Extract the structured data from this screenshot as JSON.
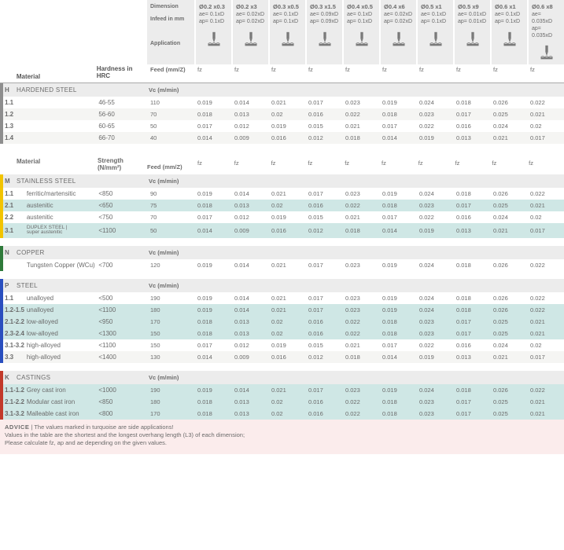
{
  "header": {
    "dimension_label": "Dimension",
    "infeed_label": "Infeed in mm",
    "application_label": "Application",
    "feed_label": "Feed (mm/Z)",
    "vc_label": "Vc (m/min)",
    "material_label": "Material",
    "hardness_label": "Hardness in HRC",
    "strength_label": "Strength (N/mm²)",
    "columns": [
      {
        "dim": "Ø0.2 x0.3",
        "ae": "ae= 0.1xD",
        "ap": "ap= 0.1xD"
      },
      {
        "dim": "Ø0.2 x3",
        "ae": "ae= 0.02xD",
        "ap": "ap= 0.02xD"
      },
      {
        "dim": "Ø0.3 x0.5",
        "ae": "ae= 0.1xD",
        "ap": "ap= 0.1xD"
      },
      {
        "dim": "Ø0.3 x1.5",
        "ae": "ae= 0.09xD",
        "ap": "ap= 0.09xD"
      },
      {
        "dim": "Ø0.4 x0.5",
        "ae": "ae= 0.1xD",
        "ap": "ap= 0.1xD"
      },
      {
        "dim": "Ø0.4 x6",
        "ae": "ae= 0.02xD",
        "ap": "ap= 0.02xD"
      },
      {
        "dim": "Ø0.5 x1",
        "ae": "ae= 0.1xD",
        "ap": "ap= 0.1xD"
      },
      {
        "dim": "Ø0.5 x9",
        "ae": "ae= 0.01xD",
        "ap": "ap= 0.01xD"
      },
      {
        "dim": "Ø0.6 x1",
        "ae": "ae= 0.1xD",
        "ap": "ap= 0.1xD"
      },
      {
        "dim": "Ø0.6 x8",
        "ae": "ae= 0.035xD",
        "ap": "ap= 0.035xD"
      }
    ],
    "fz_label": "fz"
  },
  "sections": [
    {
      "key": "H",
      "name": "HARDENED STEEL",
      "spec_header": "Hardness in HRC",
      "spec_header_key": "hardness_label",
      "rows": [
        {
          "code": "1.1",
          "mat": "",
          "spec": "46-55",
          "vc": "110",
          "fz": [
            "0.019",
            "0.014",
            "0.021",
            "0.017",
            "0.023",
            "0.019",
            "0.024",
            "0.018",
            "0.026",
            "0.022"
          ],
          "alt": false
        },
        {
          "code": "1.2",
          "mat": "",
          "spec": "56-60",
          "vc": "70",
          "fz": [
            "0.018",
            "0.013",
            "0.02",
            "0.016",
            "0.022",
            "0.018",
            "0.023",
            "0.017",
            "0.025",
            "0.021"
          ],
          "alt": true
        },
        {
          "code": "1.3",
          "mat": "",
          "spec": "60-65",
          "vc": "50",
          "fz": [
            "0.017",
            "0.012",
            "0.019",
            "0.015",
            "0.021",
            "0.017",
            "0.022",
            "0.016",
            "0.024",
            "0.02"
          ],
          "alt": false
        },
        {
          "code": "1.4",
          "mat": "",
          "spec": "66-70",
          "vc": "40",
          "fz": [
            "0.014",
            "0.009",
            "0.016",
            "0.012",
            "0.018",
            "0.014",
            "0.019",
            "0.013",
            "0.021",
            "0.017"
          ],
          "alt": true
        }
      ]
    },
    {
      "key": "M",
      "name": "STAINLESS STEEL",
      "spec_header": "Strength (N/mm²)",
      "spec_header_key": "strength_label",
      "show_mat_header": true,
      "rows": [
        {
          "code": "1.1",
          "mat": "ferritic/martensitic",
          "spec": "<850",
          "vc": "90",
          "fz": [
            "0.019",
            "0.014",
            "0.021",
            "0.017",
            "0.023",
            "0.019",
            "0.024",
            "0.018",
            "0.026",
            "0.022"
          ],
          "alt": false
        },
        {
          "code": "2.1",
          "mat": "austenitic",
          "spec": "<650",
          "vc": "75",
          "fz": [
            "0.018",
            "0.013",
            "0.02",
            "0.016",
            "0.022",
            "0.018",
            "0.023",
            "0.017",
            "0.025",
            "0.021"
          ],
          "alt": true,
          "turq": true
        },
        {
          "code": "2.2",
          "mat": "austenitic",
          "spec": "<750",
          "vc": "70",
          "fz": [
            "0.017",
            "0.012",
            "0.019",
            "0.015",
            "0.021",
            "0.017",
            "0.022",
            "0.016",
            "0.024",
            "0.02"
          ],
          "alt": false
        },
        {
          "code": "3.1",
          "mat": "DUPLEX STEEL | super austenitic",
          "spec": "<1100",
          "vc": "50",
          "fz": [
            "0.014",
            "0.009",
            "0.016",
            "0.012",
            "0.018",
            "0.014",
            "0.019",
            "0.013",
            "0.021",
            "0.017"
          ],
          "alt": true,
          "turq": true,
          "duplex": true
        }
      ]
    },
    {
      "key": "N",
      "name": "COPPER",
      "spec_header": "",
      "rows": [
        {
          "code": "",
          "mat": "Tungsten Copper (WCu)",
          "spec": "<700",
          "vc": "120",
          "fz": [
            "0.019",
            "0.014",
            "0.021",
            "0.017",
            "0.023",
            "0.019",
            "0.024",
            "0.018",
            "0.026",
            "0.022"
          ],
          "alt": false
        }
      ]
    },
    {
      "key": "P",
      "name": "STEEL",
      "spec_header": "",
      "rows": [
        {
          "code": "1.1",
          "mat": "unalloyed",
          "spec": "<500",
          "vc": "190",
          "fz": [
            "0.019",
            "0.014",
            "0.021",
            "0.017",
            "0.023",
            "0.019",
            "0.024",
            "0.018",
            "0.026",
            "0.022"
          ],
          "alt": false
        },
        {
          "code": "1.2-1.5",
          "mat": "unalloyed",
          "spec": "<1100",
          "vc": "180",
          "fz": [
            "0.019",
            "0.014",
            "0.021",
            "0.017",
            "0.023",
            "0.019",
            "0.024",
            "0.018",
            "0.026",
            "0.022"
          ],
          "alt": true,
          "turq": true
        },
        {
          "code": "2.1-2.2",
          "mat": "low-alloyed",
          "spec": "<950",
          "vc": "170",
          "fz": [
            "0.018",
            "0.013",
            "0.02",
            "0.016",
            "0.022",
            "0.018",
            "0.023",
            "0.017",
            "0.025",
            "0.021"
          ],
          "alt": false,
          "turq": true
        },
        {
          "code": "2.3-2.4",
          "mat": "low-alloyed",
          "spec": "<1300",
          "vc": "150",
          "fz": [
            "0.018",
            "0.013",
            "0.02",
            "0.016",
            "0.022",
            "0.018",
            "0.023",
            "0.017",
            "0.025",
            "0.021"
          ],
          "alt": true,
          "turq": true
        },
        {
          "code": "3.1-3.2",
          "mat": "high-alloyed",
          "spec": "<1100",
          "vc": "150",
          "fz": [
            "0.017",
            "0.012",
            "0.019",
            "0.015",
            "0.021",
            "0.017",
            "0.022",
            "0.016",
            "0.024",
            "0.02"
          ],
          "alt": false
        },
        {
          "code": "3.3",
          "mat": "high-alloyed",
          "spec": "<1400",
          "vc": "130",
          "fz": [
            "0.014",
            "0.009",
            "0.016",
            "0.012",
            "0.018",
            "0.014",
            "0.019",
            "0.013",
            "0.021",
            "0.017"
          ],
          "alt": true
        }
      ]
    },
    {
      "key": "K",
      "name": "CASTINGS",
      "spec_header": "",
      "rows": [
        {
          "code": "1.1-1.2",
          "mat": "Grey cast iron",
          "spec": "<1000",
          "vc": "190",
          "fz": [
            "0.019",
            "0.014",
            "0.021",
            "0.017",
            "0.023",
            "0.019",
            "0.024",
            "0.018",
            "0.026",
            "0.022"
          ],
          "alt": false,
          "turq": true
        },
        {
          "code": "2.1-2.2",
          "mat": "Modular cast iron",
          "spec": "<850",
          "vc": "180",
          "fz": [
            "0.018",
            "0.013",
            "0.02",
            "0.016",
            "0.022",
            "0.018",
            "0.023",
            "0.017",
            "0.025",
            "0.021"
          ],
          "alt": true,
          "turq": true
        },
        {
          "code": "3.1-3.2",
          "mat": "Malleable cast iron",
          "spec": "<800",
          "vc": "170",
          "fz": [
            "0.018",
            "0.013",
            "0.02",
            "0.016",
            "0.022",
            "0.018",
            "0.023",
            "0.017",
            "0.025",
            "0.021"
          ],
          "alt": false,
          "turq": true
        }
      ]
    }
  ],
  "advice": {
    "title": "ADVICE",
    "line1": "The values marked in turquoise are side applications!",
    "line2": "Values in the table are the shortest and the longest overhang length (L3) of each dimension;",
    "line3": "Please calculate fz, ap and ae depending on the given values."
  }
}
